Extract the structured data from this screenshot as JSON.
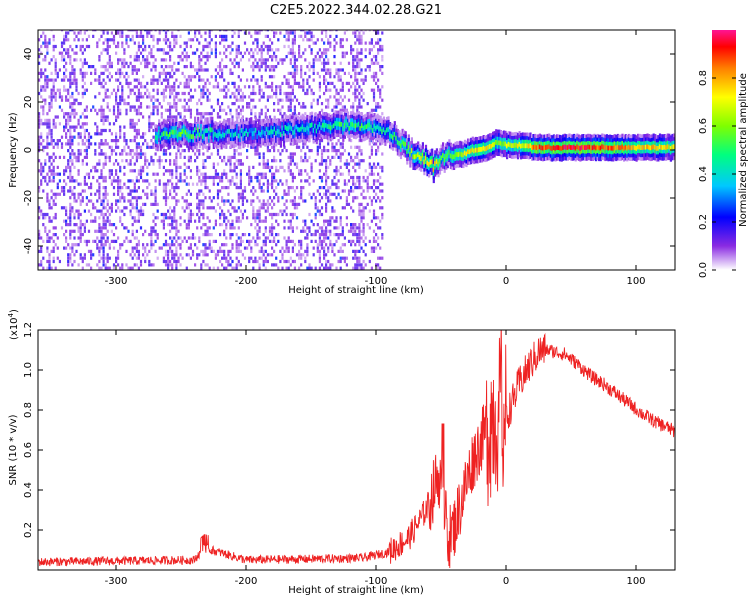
{
  "title": "C2E5.2022.344.02.28.G21",
  "colors": {
    "snr_line": "#ee2222",
    "axis": "#000000"
  },
  "chart_data": [
    {
      "type": "heatmap",
      "name": "spectrogram",
      "xlabel": "Height of straight line (km)",
      "ylabel": "Frequency (Hz)",
      "xlim": [
        -360,
        130
      ],
      "ylim": [
        -50,
        50
      ],
      "xticks": [
        {
          "value": -300,
          "label": "-300"
        },
        {
          "value": -200,
          "label": "-200"
        },
        {
          "value": -100,
          "label": "-100"
        },
        {
          "value": 0,
          "label": "0"
        },
        {
          "value": 100,
          "label": "100"
        }
      ],
      "yticks": [
        {
          "value": -40,
          "label": "-40"
        },
        {
          "value": -20,
          "label": "-20"
        },
        {
          "value": 0,
          "label": "0"
        },
        {
          "value": 20,
          "label": "20"
        },
        {
          "value": 40,
          "label": "40"
        }
      ],
      "noise_region_x": [
        -360,
        -95
      ],
      "ridge": [
        {
          "x": -270,
          "y": 6,
          "a": 0.45
        },
        {
          "x": -255,
          "y": 7,
          "a": 0.55
        },
        {
          "x": -240,
          "y": 7,
          "a": 0.5
        },
        {
          "x": -220,
          "y": 7,
          "a": 0.4
        },
        {
          "x": -190,
          "y": 7,
          "a": 0.35
        },
        {
          "x": -170,
          "y": 8,
          "a": 0.45
        },
        {
          "x": -150,
          "y": 9,
          "a": 0.4
        },
        {
          "x": -130,
          "y": 10,
          "a": 0.5
        },
        {
          "x": -110,
          "y": 10,
          "a": 0.5
        },
        {
          "x": -95,
          "y": 9,
          "a": 0.45
        },
        {
          "x": -85,
          "y": 5,
          "a": 0.5
        },
        {
          "x": -78,
          "y": 1,
          "a": 0.55
        },
        {
          "x": -70,
          "y": -3,
          "a": 0.65
        },
        {
          "x": -62,
          "y": -4,
          "a": 0.7
        },
        {
          "x": -56,
          "y": -7,
          "a": 0.8
        },
        {
          "x": -50,
          "y": -3,
          "a": 0.55
        },
        {
          "x": -44,
          "y": -2,
          "a": 0.6
        },
        {
          "x": -35,
          "y": -2,
          "a": 0.65
        },
        {
          "x": -25,
          "y": 0,
          "a": 0.75
        },
        {
          "x": -15,
          "y": 1,
          "a": 0.75
        },
        {
          "x": -8,
          "y": 3,
          "a": 0.6
        },
        {
          "x": 0,
          "y": 2,
          "a": 0.65
        },
        {
          "x": 10,
          "y": 2,
          "a": 0.7
        },
        {
          "x": 25,
          "y": 1,
          "a": 0.85
        },
        {
          "x": 45,
          "y": 1,
          "a": 0.95
        },
        {
          "x": 65,
          "y": 1,
          "a": 0.9
        },
        {
          "x": 85,
          "y": 1,
          "a": 0.85
        },
        {
          "x": 100,
          "y": 1,
          "a": 0.75
        },
        {
          "x": 115,
          "y": 1,
          "a": 0.75
        },
        {
          "x": 130,
          "y": 1,
          "a": 0.7
        }
      ]
    },
    {
      "type": "line",
      "name": "snr",
      "xlabel": "Height of straight line (km)",
      "ylabel": "SNR (10 * v/v)",
      "multiplier_label": "(x10",
      "multiplier_exp": "4",
      "multiplier_close": ")",
      "xlim": [
        -360,
        130
      ],
      "ylim": [
        0,
        12000
      ],
      "xticks": [
        {
          "value": -300,
          "label": "-300"
        },
        {
          "value": -200,
          "label": "-200"
        },
        {
          "value": -100,
          "label": "-100"
        },
        {
          "value": 0,
          "label": "0"
        },
        {
          "value": 100,
          "label": "100"
        }
      ],
      "yticks": [
        {
          "value": 2000,
          "label": "0.2"
        },
        {
          "value": 4000,
          "label": "0.4"
        },
        {
          "value": 6000,
          "label": "0.6"
        },
        {
          "value": 8000,
          "label": "0.8"
        },
        {
          "value": 10000,
          "label": "1.0"
        },
        {
          "value": 12000,
          "label": "1.2"
        }
      ],
      "series": [
        {
          "x": [
            -360,
            -300,
            -240,
            -232,
            -200,
            -150,
            -110,
            -90,
            -75,
            -65,
            -58,
            -52,
            -48,
            -44,
            -40,
            -32,
            -25,
            -18,
            -12,
            -8,
            -5,
            -3,
            0,
            5,
            10,
            18,
            25,
            32,
            38,
            45,
            55,
            65,
            75,
            85,
            95,
            105,
            115,
            125,
            130
          ],
          "y": [
            400,
            450,
            500,
            1100,
            500,
            550,
            600,
            900,
            1600,
            2600,
            3500,
            4800,
            3300,
            1600,
            2100,
            4000,
            5600,
            6600,
            7500,
            8000,
            7600,
            7300,
            7600,
            8400,
            9300,
            10200,
            10900,
            11000,
            10900,
            10800,
            10300,
            9700,
            9300,
            8800,
            8300,
            7800,
            7400,
            7100,
            6900
          ]
        }
      ]
    },
    {
      "type": "colorbar",
      "label": "Normalized spectral amplitude",
      "range": [
        0,
        1
      ],
      "ticks": [
        {
          "value": 0.0,
          "label": "0.0"
        },
        {
          "value": 0.2,
          "label": "0.2"
        },
        {
          "value": 0.4,
          "label": "0.4"
        },
        {
          "value": 0.6,
          "label": "0.6"
        },
        {
          "value": 0.8,
          "label": "0.8"
        }
      ]
    }
  ]
}
